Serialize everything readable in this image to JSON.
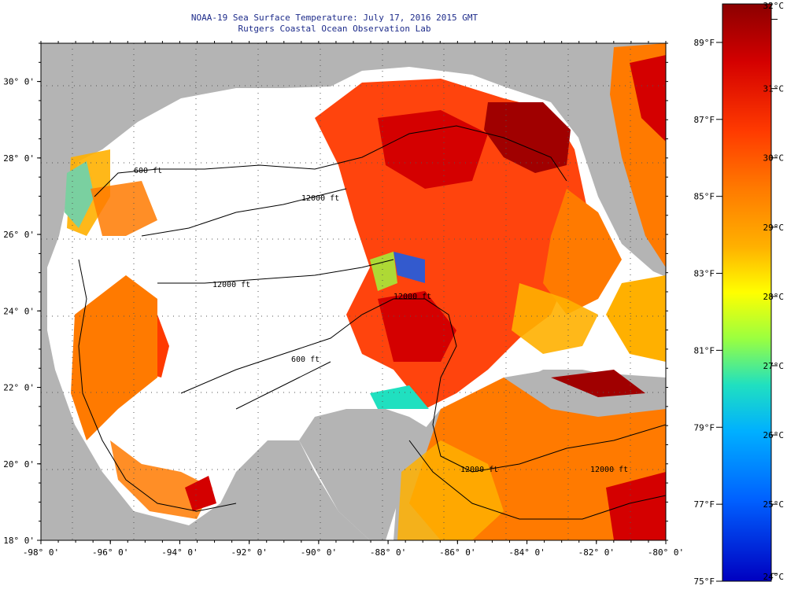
{
  "title_line1": "NOAA-19 Sea Surface Temperature:  July 17, 2016 2015 GMT",
  "title_line2": "Rutgers Coastal Ocean Observation Lab",
  "longitude_ticks": [
    {
      "label": "-98° 0'",
      "value": -98
    },
    {
      "label": "-96° 0'",
      "value": -96
    },
    {
      "label": "-94° 0'",
      "value": -94
    },
    {
      "label": "-92° 0'",
      "value": -92
    },
    {
      "label": "-90° 0'",
      "value": -90
    },
    {
      "label": "-88° 0'",
      "value": -88
    },
    {
      "label": "-86° 0'",
      "value": -86
    },
    {
      "label": "-84° 0'",
      "value": -84
    },
    {
      "label": "-82° 0'",
      "value": -82
    },
    {
      "label": "-80° 0'",
      "value": -80
    }
  ],
  "latitude_ticks": [
    {
      "label": "18° 0'",
      "value": 18
    },
    {
      "label": "20° 0'",
      "value": 20
    },
    {
      "label": "22° 0'",
      "value": 22
    },
    {
      "label": "24° 0'",
      "value": 24
    },
    {
      "label": "26° 0'",
      "value": 26
    },
    {
      "label": "28° 0'",
      "value": 28
    },
    {
      "label": "30° 0'",
      "value": 30
    }
  ],
  "contour_labels": [
    "600 ft",
    "12000 ft",
    "12000 ft",
    "600 ft",
    "12000 ft",
    "12000 ft",
    "12000 ft"
  ],
  "colorbar": {
    "min_f": 75,
    "max_f": 90,
    "fahrenheit_labels": [
      {
        "label": "89°F",
        "value": 89
      },
      {
        "label": "87°F",
        "value": 87
      },
      {
        "label": "85°F",
        "value": 85
      },
      {
        "label": "83°F",
        "value": 83
      },
      {
        "label": "81°F",
        "value": 81
      },
      {
        "label": "79°F",
        "value": 79
      },
      {
        "label": "77°F",
        "value": 77
      },
      {
        "label": "75°F",
        "value": 75
      }
    ],
    "celsius_labels": [
      {
        "label": "32°C",
        "value": 32
      },
      {
        "label": "31°C",
        "value": 31
      },
      {
        "label": "30°C",
        "value": 30
      },
      {
        "label": "29°C",
        "value": 29
      },
      {
        "label": "28°C",
        "value": 28
      },
      {
        "label": "27°C",
        "value": 27
      },
      {
        "label": "26°C",
        "value": 26
      },
      {
        "label": "25°C",
        "value": 25
      },
      {
        "label": "24°C",
        "value": 24
      }
    ],
    "colors": [
      "#8b0000",
      "#d40000",
      "#ff3a00",
      "#ff7a00",
      "#ffb000",
      "#ffff00",
      "#9aff40",
      "#20e0c0",
      "#00b0ff",
      "#0060ff",
      "#0000c0"
    ]
  },
  "colors": {
    "land": "#b4b4b4",
    "nodata": "#ffffff",
    "title": "#1d2b8a",
    "grid": "#555555"
  },
  "legend_colors": {
    "warm": "#ff3a00",
    "hot": "#a00000",
    "cool": "#7ad0a0"
  }
}
